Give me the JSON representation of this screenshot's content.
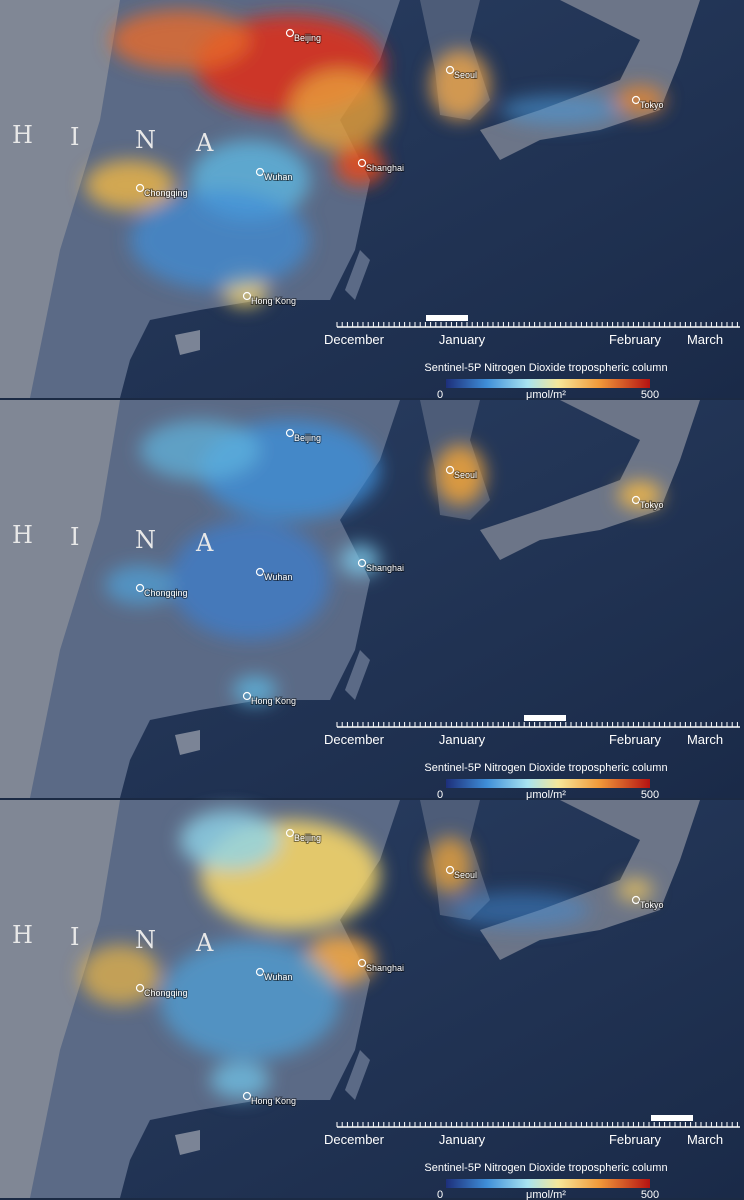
{
  "panels": [
    {
      "country_letters": [
        "H",
        "I",
        "N",
        "A"
      ],
      "cities": [
        "Beijing",
        "Seoul",
        "Tokyo",
        "Shanghai",
        "Wuhan",
        "Chongqing",
        "Hong Kong"
      ],
      "timeline": {
        "months": [
          "December",
          "January",
          "February",
          "March"
        ]
      },
      "legend": {
        "title": "Sentinel-5P Nitrogen Dioxide tropospheric column",
        "min": 0,
        "unit": "μmol/m²",
        "max": 500
      }
    },
    {
      "country_letters": [
        "H",
        "I",
        "N",
        "A"
      ],
      "cities": [
        "Beijing",
        "Seoul",
        "Tokyo",
        "Shanghai",
        "Wuhan",
        "Chongqing",
        "Hong Kong"
      ],
      "timeline": {
        "months": [
          "December",
          "January",
          "February",
          "March"
        ]
      },
      "legend": {
        "title": "Sentinel-5P Nitrogen Dioxide tropospheric column",
        "min": 0,
        "unit": "μmol/m²",
        "max": 500
      }
    },
    {
      "country_letters": [
        "H",
        "I",
        "N",
        "A"
      ],
      "cities": [
        "Beijing",
        "Seoul",
        "Tokyo",
        "Shanghai",
        "Wuhan",
        "Chongqing",
        "Hong Kong"
      ],
      "timeline": {
        "months": [
          "December",
          "January",
          "February",
          "March"
        ]
      },
      "legend": {
        "title": "Sentinel-5P Nitrogen Dioxide tropospheric column",
        "min": 0,
        "unit": "μmol/m²",
        "max": 500
      }
    }
  ]
}
